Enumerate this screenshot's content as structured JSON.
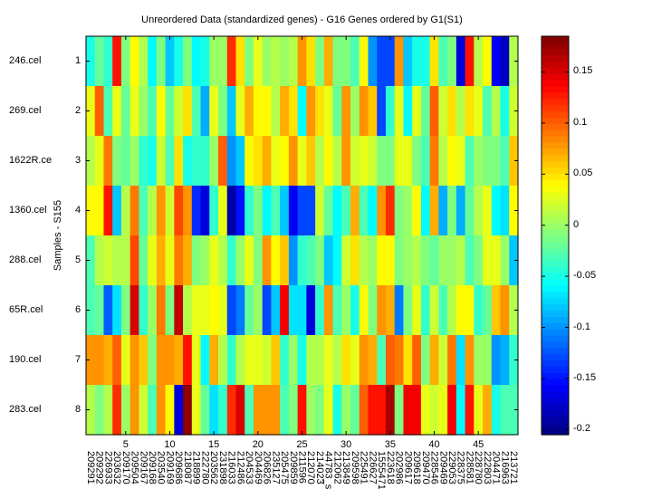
{
  "chart_data": {
    "type": "heatmap",
    "title": "Unreordered Data (standardized genes) - G16 Genes ordered by G1(S1)",
    "ylabel": "Samples - S155",
    "xlabel": "",
    "colormap": "jet",
    "clim": [
      -0.205,
      0.185
    ],
    "colorbar_ticks": [
      0.15,
      0.1,
      0.05,
      0,
      -0.05,
      -0.1,
      -0.15,
      -0.2
    ],
    "colorbar_tick_labels": [
      "0.15",
      "0.1",
      "0.05",
      "0",
      "-0.05",
      "-0.1",
      "-0.15",
      "-0.2"
    ],
    "x_ticks": [
      "5",
      "10",
      "15",
      "20",
      "25",
      "30",
      "35",
      "40",
      "45"
    ],
    "y_ticks": [
      "1",
      "2",
      "3",
      "4",
      "5",
      "6",
      "7",
      "8"
    ],
    "row_labels": [
      "246.cel",
      "269.cel",
      "1622R.ce",
      "1360.cel",
      "288.cel",
      "65R.cel",
      "190.cel",
      "283.cel"
    ],
    "column_labels": [
      "209291",
      "209292",
      "226933",
      "203632",
      "209170",
      "209504",
      "209167",
      "209168",
      "203540",
      "209169",
      "209686",
      "218087",
      "218899",
      "222780",
      "203562",
      "231898",
      "216033",
      "212486",
      "204533",
      "204469",
      "206826",
      "235127",
      "205475",
      "209859",
      "211596",
      "212070",
      "214023",
      "44783_s",
      "212062",
      "213849",
      "209598",
      "225491",
      "226627",
      "1555471",
      "223618",
      "202986",
      "209617",
      "209618",
      "209470",
      "228546",
      "209469",
      "229053",
      "228375",
      "228581",
      "228780",
      "222803",
      "204471",
      "216963",
      "213721"
    ],
    "values": [
      [
        -0.05,
        -0.02,
        -0.04,
        0.13,
        -0.01,
        0.04,
        0.01,
        -0.06,
        -0.01,
        -0.08,
        -0.05,
        -0.01,
        -0.06,
        -0.05,
        0.0,
        0.0,
        0.12,
        0.05,
        -0.01,
        0.03,
        0.0,
        0.01,
        0.0,
        0.01,
        0.08,
        0.05,
        -0.01,
        0.07,
        -0.01,
        -0.01,
        -0.03,
        0.04,
        -0.1,
        -0.13,
        -0.13,
        0.08,
        -0.08,
        -0.05,
        -0.05,
        0.05,
        -0.03,
        -0.01,
        -0.17,
        0.13,
        0.01,
        0.04,
        -0.16,
        -0.18,
        0.01
      ],
      [
        0.03,
        0.1,
        -0.03,
        0.03,
        -0.02,
        0.03,
        0.0,
        -0.03,
        0.04,
        -0.02,
        0.02,
        0.05,
        -0.03,
        -0.09,
        0.03,
        -0.01,
        -0.08,
        0.03,
        0.07,
        0.04,
        0.04,
        0.01,
        0.07,
        0.05,
        -0.06,
        0.08,
        0.05,
        0.03,
        -0.02,
        0.08,
        0.0,
        0.08,
        0.06,
        -0.13,
        -0.04,
        0.03,
        -0.06,
        0.03,
        -0.02,
        0.1,
        0.02,
        0.05,
        0.01,
        0.05,
        0.03,
        -0.03,
        0.01,
        -0.05,
        0.02
      ],
      [
        0.01,
        0.03,
        0.09,
        -0.01,
        -0.02,
        0.0,
        -0.04,
        -0.05,
        0.02,
        -0.03,
        0.05,
        -0.05,
        -0.04,
        -0.04,
        0.0,
        0.1,
        -0.1,
        -0.08,
        0.04,
        0.05,
        0.07,
        0.03,
        0.04,
        0.08,
        0.03,
        0.06,
        0.01,
        0.04,
        0.01,
        0.08,
        0.02,
        0.03,
        0.02,
        -0.01,
        -0.01,
        0.03,
        0.03,
        -0.01,
        -0.03,
        0.09,
        0.01,
        0.04,
        0.03,
        -0.03,
        0.0,
        -0.01,
        -0.01,
        -0.03,
        0.06
      ],
      [
        0.04,
        0.04,
        0.13,
        -0.08,
        0.01,
        0.09,
        -0.03,
        0.01,
        0.08,
        0.02,
        0.11,
        0.08,
        -0.14,
        -0.17,
        -0.04,
        0.03,
        -0.19,
        -0.15,
        -0.04,
        -0.01,
        -0.06,
        -0.03,
        -0.08,
        -0.16,
        -0.13,
        -0.13,
        0.02,
        -0.02,
        -0.06,
        -0.03,
        0.07,
        -0.03,
        -0.06,
        0.08,
        0.12,
        -0.01,
        0.0,
        0.04,
        -0.06,
        0.07,
        -0.09,
        -0.01,
        -0.09,
        -0.02,
        0.01,
        0.03,
        -0.06,
        -0.07,
        0.04
      ],
      [
        -0.03,
        0.01,
        0.02,
        0.01,
        0.01,
        0.11,
        -0.02,
        0.03,
        0.07,
        0.03,
        0.09,
        0.07,
        -0.01,
        0.0,
        0.03,
        0.01,
        -0.04,
        0.0,
        0.03,
        -0.01,
        0.08,
        0.04,
        0.06,
        -0.1,
        -0.04,
        -0.03,
        -0.01,
        -0.08,
        -0.06,
        0.02,
        0.05,
        0.01,
        0.0,
        0.04,
        0.04,
        -0.01,
        0.0,
        0.01,
        -0.01,
        -0.02,
        0.0,
        0.0,
        0.01,
        -0.03,
        -0.01,
        0.03,
        0.03,
        0.0,
        -0.08
      ],
      [
        -0.03,
        -0.02,
        -0.12,
        -0.07,
        -0.01,
        0.15,
        -0.04,
        0.0,
        0.09,
        -0.01,
        0.16,
        0.01,
        0.03,
        0.03,
        0.04,
        0.03,
        -0.13,
        -0.11,
        -0.02,
        0.0,
        -0.13,
        -0.08,
        0.14,
        -0.07,
        -0.07,
        -0.17,
        -0.04,
        0.08,
        -0.03,
        0.0,
        -0.05,
        0.04,
        -0.01,
        0.08,
        0.07,
        -0.11,
        -0.01,
        0.03,
        -0.04,
        0.02,
        -0.03,
        0.01,
        0.04,
        0.04,
        -0.04,
        -0.02,
        0.06,
        0.08,
        0.01
      ],
      [
        0.08,
        0.08,
        0.07,
        0.1,
        0.03,
        0.08,
        0.06,
        -0.01,
        0.08,
        0.08,
        0.07,
        0.13,
        0.03,
        -0.06,
        0.07,
        0.01,
        -0.04,
        0.01,
        0.03,
        0.03,
        0.02,
        0.06,
        -0.04,
        0.0,
        -0.05,
        0.01,
        0.01,
        0.03,
        0.01,
        0.05,
        0.03,
        0.08,
        0.07,
        -0.03,
        0.1,
        0.09,
        0.05,
        0.1,
        -0.01,
        0.07,
        0.02,
        0.09,
        -0.07,
        0.08,
        0.0,
        0.0,
        -0.1,
        -0.09,
        -0.04
      ],
      [
        0.01,
        -0.01,
        0.01,
        0.12,
        0.0,
        0.08,
        0.02,
        -0.03,
        0.08,
        0.04,
        -0.17,
        0.18,
        0.03,
        -0.02,
        -0.07,
        -0.04,
        0.12,
        0.15,
        -0.03,
        0.08,
        0.08,
        0.08,
        -0.03,
        -0.01,
        0.13,
        0.0,
        -0.01,
        0.03,
        -0.05,
        0.0,
        -0.02,
        0.1,
        0.13,
        0.13,
        0.17,
        -0.01,
        0.14,
        0.14,
        0.03,
        0.02,
        0.03,
        0.14,
        -0.06,
        0.13,
        0.03,
        0.07,
        -0.05,
        -0.03,
        -0.03
      ]
    ]
  }
}
